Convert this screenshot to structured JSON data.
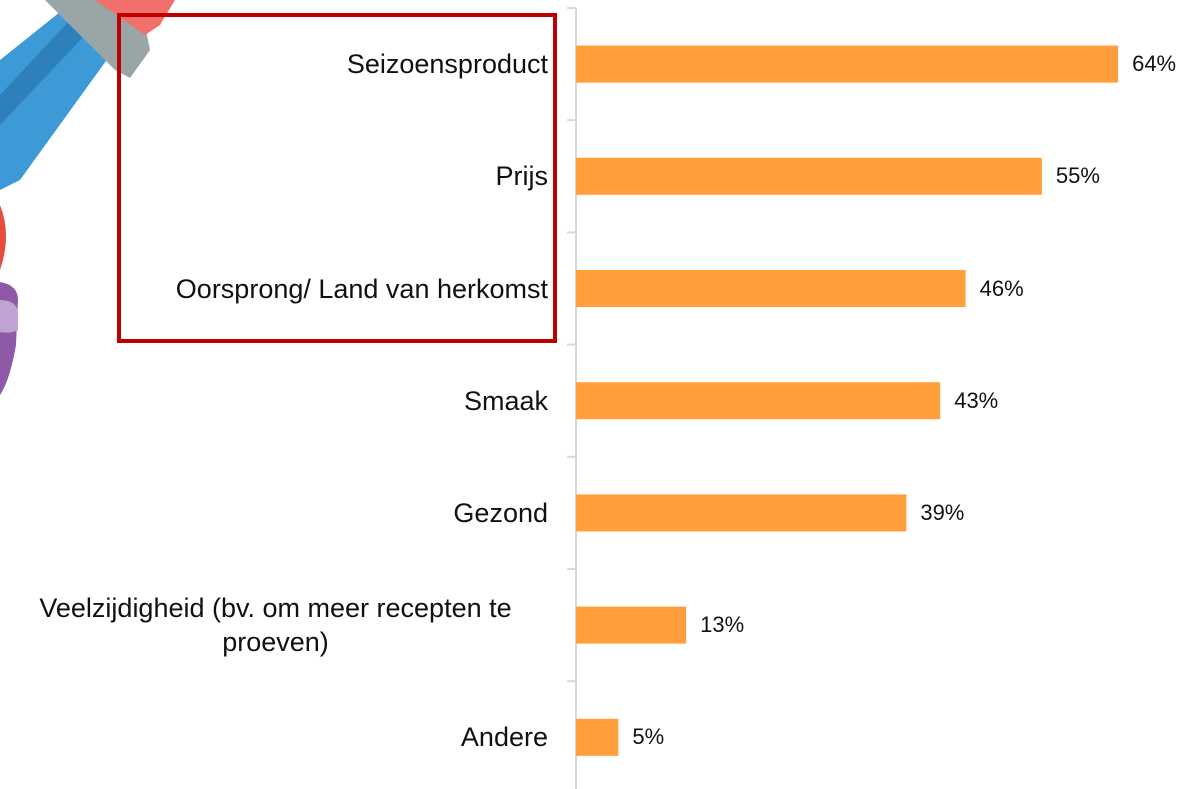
{
  "chart_data": {
    "type": "bar",
    "orientation": "horizontal",
    "categories": [
      "Seizoensproduct",
      "Prijs",
      "Oorsprong/ Land van herkomst",
      "Smaak",
      "Gezond",
      "Veelzijdigheid (bv. om meer recepten te proeven)",
      "Andere"
    ],
    "values": [
      64,
      55,
      46,
      43,
      39,
      13,
      5
    ],
    "value_labels": [
      "64%",
      "55%",
      "46%",
      "43%",
      "39%",
      "13%",
      "5%"
    ],
    "color": "#ff9e3a"
  }
}
